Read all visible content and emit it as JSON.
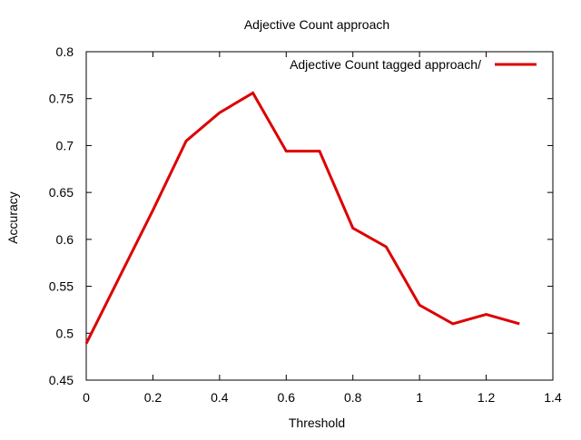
{
  "chart_data": {
    "type": "line",
    "title": "Adjective Count approach",
    "xlabel": "Threshold",
    "ylabel": "Accuracy",
    "xlim": [
      0,
      1.4
    ],
    "ylim": [
      0.45,
      0.8
    ],
    "xticks": [
      "0",
      "0.2",
      "0.4",
      "0.6",
      "0.8",
      "1",
      "1.2",
      "1.4"
    ],
    "yticks": [
      "0.45",
      "0.5",
      "0.55",
      "0.6",
      "0.65",
      "0.7",
      "0.75",
      "0.8"
    ],
    "grid": false,
    "legend_position": "top-right",
    "series": [
      {
        "name": "Adjective Count tagged approach/",
        "color": "#dd0000",
        "x": [
          0,
          0.1,
          0.2,
          0.3,
          0.4,
          0.5,
          0.6,
          0.7,
          0.8,
          0.9,
          1.0,
          1.1,
          1.2,
          1.3
        ],
        "y": [
          0.489,
          0.56,
          0.631,
          0.705,
          0.735,
          0.756,
          0.694,
          0.694,
          0.612,
          0.592,
          0.53,
          0.51,
          0.52,
          0.51
        ]
      }
    ]
  }
}
